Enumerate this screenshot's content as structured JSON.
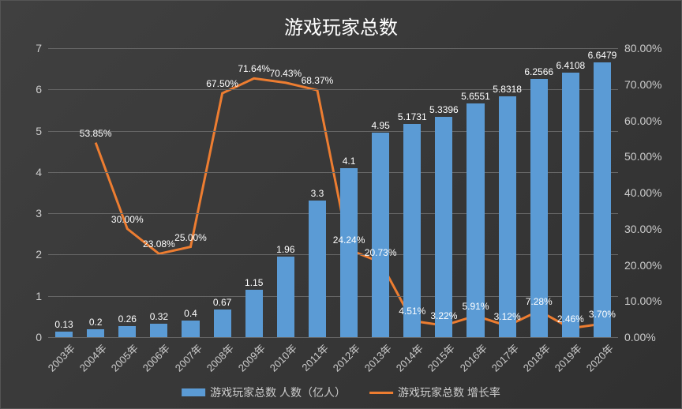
{
  "chart": {
    "type": "bar+line",
    "title": "游戏玩家总数",
    "background_gradient": [
      "#404040",
      "#303030"
    ],
    "grid_color": "#666666",
    "text_color": "#cccccc",
    "title_color": "#ffffff",
    "title_fontsize": 24,
    "label_fontsize": 12,
    "tick_fontsize": 14,
    "categories": [
      "2003年",
      "2004年",
      "2005年",
      "2006年",
      "2007年",
      "2008年",
      "2009年",
      "2010年",
      "2011年",
      "2012年",
      "2013年",
      "2014年",
      "2015年",
      "2016年",
      "2017年",
      "2018年",
      "2019年",
      "2020年"
    ],
    "bar_series": {
      "name": "游戏玩家总数 人数（亿人）",
      "color": "#5b9bd5",
      "values": [
        0.13,
        0.2,
        0.26,
        0.32,
        0.4,
        0.67,
        1.15,
        1.96,
        3.3,
        4.1,
        4.95,
        5.1731,
        5.3396,
        5.6551,
        5.8318,
        6.2566,
        6.4108,
        6.6479
      ],
      "labels": [
        "0.13",
        "0.2",
        "0.26",
        "0.32",
        "0.4",
        "0.67",
        "1.15",
        "1.96",
        "3.3",
        "4.1",
        "4.95",
        "5.1731",
        "5.3396",
        "5.6551",
        "5.8318",
        "6.2566",
        "6.4108",
        "6.6479"
      ],
      "bar_width_ratio": 0.55
    },
    "line_series": {
      "name": "游戏玩家总数 增长率",
      "color": "#ed7d31",
      "line_width": 3,
      "values": [
        null,
        53.85,
        30.0,
        23.08,
        25.0,
        67.5,
        71.64,
        70.43,
        68.37,
        24.24,
        20.73,
        4.51,
        3.22,
        5.91,
        3.12,
        7.28,
        2.46,
        3.7
      ],
      "labels": [
        null,
        "53.85%",
        "30.00%",
        "23.08%",
        "25.00%",
        "67.50%",
        "71.64%",
        "70.43%",
        "68.37%",
        "24.24%",
        "20.73%",
        "4.51%",
        "3.22%",
        "5.91%",
        "3.12%",
        "7.28%",
        "2.46%",
        "3.70%"
      ]
    },
    "y_left": {
      "min": 0,
      "max": 7,
      "step": 1
    },
    "y_right": {
      "min": 0,
      "max": 80,
      "step": 10,
      "format": "percent"
    },
    "legend": {
      "items": [
        {
          "kind": "bar",
          "color": "#5b9bd5",
          "label": "游戏玩家总数 人数（亿人）"
        },
        {
          "kind": "line",
          "color": "#ed7d31",
          "label": "游戏玩家总数 增长率"
        }
      ]
    }
  }
}
